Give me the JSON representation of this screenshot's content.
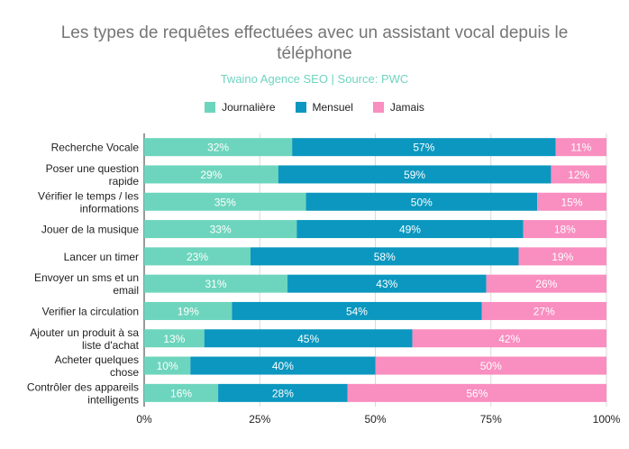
{
  "chart_data": {
    "type": "bar",
    "orientation": "horizontal",
    "stacked": "percent",
    "title": "Les types de requêtes effectuées avec un assistant vocal depuis le téléphone",
    "title_lines": [
      "Les types de requêtes effectuées avec un assistant vocal depuis le",
      "téléphone"
    ],
    "subtitle": "Twaino Agence SEO | Source: PWC",
    "legend_position": "top",
    "grid": true,
    "xlim": [
      0,
      100
    ],
    "x_ticks": [
      "0%",
      "25%",
      "50%",
      "75%",
      "100%"
    ],
    "categories": [
      [
        "Recherche Vocale"
      ],
      [
        "Poser une question",
        "rapide"
      ],
      [
        "Vérifier le temps / les",
        "informations"
      ],
      [
        "Jouer de la musique"
      ],
      [
        "Lancer  un timer"
      ],
      [
        "Envoyer un sms et un",
        "email"
      ],
      [
        "Verifier la circulation"
      ],
      [
        "Ajouter un produit à sa",
        "liste d'achat"
      ],
      [
        "Acheter quelques",
        "chose"
      ],
      [
        "Contrôler des appareils",
        "intelligents"
      ]
    ],
    "series": [
      {
        "name": "Journalière",
        "color": "#6dd5bd",
        "values": [
          32,
          29,
          35,
          33,
          23,
          31,
          19,
          13,
          10,
          16
        ]
      },
      {
        "name": "Mensuel",
        "color": "#0b97bf",
        "values": [
          57,
          59,
          50,
          49,
          58,
          43,
          54,
          45,
          40,
          28
        ]
      },
      {
        "name": "Jamais",
        "color": "#f98ec0",
        "values": [
          11,
          12,
          15,
          18,
          19,
          26,
          27,
          42,
          50,
          56
        ]
      }
    ]
  }
}
